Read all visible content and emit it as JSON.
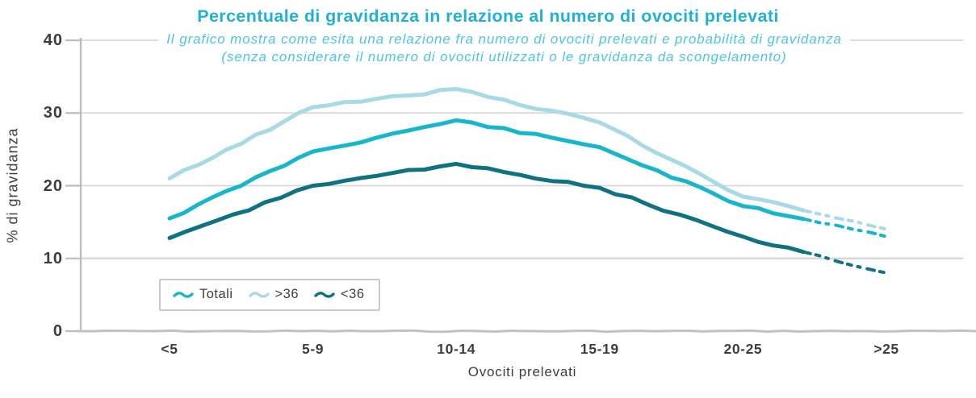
{
  "chart_data": {
    "type": "line",
    "title": "Percentuale di gravidanza in relazione al numero di ovociti prelevati",
    "subtitle_lines": [
      "Il grafico mostra come esita una relazione fra numero di ovociti prelevati e probabilità di gravidanza",
      "(senza considerare il numero di ovociti utilizzati o le gravidanza da scongelamento)"
    ],
    "xlabel": "Ovociti prelevati",
    "ylabel": "% di gravidanza",
    "categories": [
      "<5",
      "5-9",
      "10-14",
      "15-19",
      "20-25",
      ">25"
    ],
    "series": [
      {
        "name": "Totali",
        "color": "#17b6ca",
        "values": [
          15.5,
          24.7,
          29,
          25.3,
          17.2,
          13
        ]
      },
      {
        "name": ">36",
        "color": "#a7dae5",
        "values": [
          21,
          30.8,
          33.3,
          28.7,
          18.5,
          14
        ]
      },
      {
        "name": "<36",
        "color": "#0f7280",
        "values": [
          12.8,
          20,
          23,
          19.7,
          13,
          8
        ]
      }
    ],
    "ylim": [
      0,
      40
    ],
    "yticks": [
      0,
      10,
      20,
      30,
      40
    ],
    "grid": "horizontal",
    "legend_position": "inside-bottom-left",
    "style": "hand-drawn",
    "dashed_tail_on_last_segment": true,
    "title_color": "#21b1d5",
    "subtitle_color": "#4dc4e4",
    "axis_text_color": "#3d3d3d",
    "grid_color": "#d7d7d7",
    "axis_color": "#bdbdbd",
    "legend_border_color": "#c9c9c9"
  }
}
